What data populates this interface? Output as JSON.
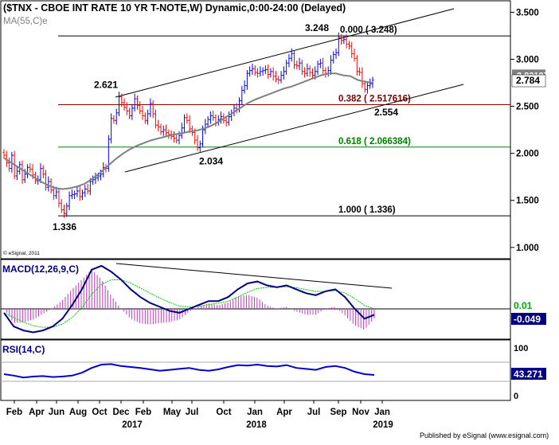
{
  "header": {
    "title": "($TNX - CBOE INT RATE 10 YR T-NOTE,W) Dynamic,0:00-24:00 (Delayed)",
    "ma_label": "MA(55,C)e",
    "watermark": "© eSignal, 2011",
    "footer": "Published by eSignal (www.esignal.com)"
  },
  "colors": {
    "up": "#0000ff",
    "down": "#ff0000",
    "ma": "#808080",
    "fib": "#800000",
    "fib618": "#008000",
    "macd": "#000080",
    "signal": "#00cc00",
    "hist": "#cc33cc",
    "rsi": "#0000cc",
    "price_box": "#000080"
  },
  "chart_data": [
    {
      "type": "candlestick",
      "name": "price",
      "y_ticks": [
        "3.500",
        "3.000",
        "2.500",
        "2.000",
        "1.500",
        "1.000"
      ],
      "y_tick_values": [
        3.5,
        3.0,
        2.5,
        2.0,
        1.5,
        1.0
      ],
      "ylim": [
        0.94,
        3.62
      ],
      "x_month_labels": [
        "Feb",
        "Apr",
        "Jun",
        "Aug",
        "Oct",
        "Dec",
        "Feb",
        "May",
        "Jul",
        "Oct",
        "Jan",
        "Apr",
        "Jul",
        "Sep",
        "Nov",
        "Jan"
      ],
      "x_year_labels": [
        "2017",
        "2018",
        "2019"
      ],
      "last_price": "2.784",
      "ma_value": "2.831873",
      "fib_levels": [
        {
          "label": "0.000 ( 3.248)",
          "value": 3.248
        },
        {
          "label": "0.382 ( 2.517616)",
          "value": 2.517616
        },
        {
          "label": "0.618 ( 2.066384)",
          "value": 2.066384
        },
        {
          "label": "1.000 ( 1.336)",
          "value": 1.336
        }
      ],
      "annotations": [
        "2.621",
        "2.034",
        "1.336",
        "3.248",
        "2.554"
      ],
      "annotation_values": [
        2.621,
        2.034,
        1.336,
        3.248,
        2.554
      ],
      "weekly_close": [
        1.98,
        1.9,
        1.84,
        1.98,
        1.76,
        1.81,
        1.88,
        1.72,
        1.78,
        1.85,
        1.83,
        1.77,
        1.71,
        1.72,
        1.84,
        1.78,
        1.64,
        1.7,
        1.61,
        1.55,
        1.59,
        1.47,
        1.4,
        1.36,
        1.44,
        1.55,
        1.56,
        1.57,
        1.6,
        1.54,
        1.58,
        1.62,
        1.6,
        1.7,
        1.72,
        1.74,
        1.76,
        1.78,
        1.85,
        1.84,
        2.15,
        2.37,
        2.35,
        2.43,
        2.6,
        2.54,
        2.49,
        2.45,
        2.4,
        2.48,
        2.58,
        2.51,
        2.45,
        2.4,
        2.35,
        2.42,
        2.53,
        2.42,
        2.3,
        2.28,
        2.23,
        2.25,
        2.22,
        2.2,
        2.18,
        2.16,
        2.14,
        2.19,
        2.27,
        2.38,
        2.35,
        2.26,
        2.22,
        2.14,
        2.06,
        2.1,
        2.25,
        2.31,
        2.36,
        2.4,
        2.38,
        2.33,
        2.36,
        2.39,
        2.35,
        2.33,
        2.39,
        2.43,
        2.48,
        2.47,
        2.56,
        2.67,
        2.72,
        2.85,
        2.88,
        2.9,
        2.86,
        2.85,
        2.87,
        2.88,
        2.89,
        2.84,
        2.87,
        2.82,
        2.79,
        2.78,
        2.83,
        2.87,
        2.96,
        3.01,
        3.06,
        2.94,
        2.93,
        2.96,
        2.87,
        2.85,
        2.9,
        2.86,
        2.83,
        2.87,
        2.95,
        2.96,
        2.88,
        2.85,
        2.88,
        2.99,
        3.05,
        3.07,
        3.23,
        3.2,
        3.21,
        3.16,
        3.14,
        3.06,
        3.01,
        2.87,
        2.86,
        2.74,
        2.68,
        2.72,
        2.74,
        2.78
      ],
      "ma55": [
        1.95,
        1.9,
        1.85,
        1.8,
        1.75,
        1.7,
        1.66,
        1.63,
        1.62,
        1.63,
        1.65,
        1.68,
        1.73,
        1.79,
        1.86,
        1.93,
        1.99,
        2.04,
        2.08,
        2.11,
        2.14,
        2.16,
        2.18,
        2.2,
        2.21,
        2.23,
        2.24,
        2.26,
        2.29,
        2.33,
        2.38,
        2.43,
        2.48,
        2.53,
        2.57,
        2.6,
        2.63,
        2.66,
        2.69,
        2.71,
        2.74,
        2.77,
        2.8,
        2.83,
        2.85,
        2.85,
        2.83,
        2.82,
        2.78,
        2.76,
        2.75
      ]
    },
    {
      "type": "line",
      "name": "MACD",
      "label": "MACD(12,26,9,C)",
      "value_labels": [
        "0.01",
        "-0.049"
      ],
      "macd_values": [
        -0.02,
        -0.09,
        -0.11,
        -0.12,
        -0.11,
        -0.09,
        -0.05,
        0.02,
        0.1,
        0.2,
        0.22,
        0.19,
        0.15,
        0.1,
        0.06,
        0.03,
        0.01,
        -0.01,
        -0.02,
        0.0,
        0.02,
        0.04,
        0.04,
        0.06,
        0.1,
        0.13,
        0.14,
        0.12,
        0.11,
        0.12,
        0.1,
        0.08,
        0.07,
        0.09,
        0.1,
        0.06,
        0.0,
        -0.05,
        -0.03
      ]
    },
    {
      "type": "line",
      "name": "RSI",
      "label": "RSI(14,C)",
      "y_ticks": [
        "100",
        "50",
        "0"
      ],
      "value_label": "43.271",
      "rsi_values": [
        45,
        42,
        38,
        40,
        41,
        39,
        40,
        42,
        48,
        58,
        65,
        66,
        62,
        60,
        58,
        55,
        52,
        54,
        56,
        58,
        54,
        52,
        55,
        60,
        64,
        63,
        65,
        62,
        61,
        64,
        58,
        56,
        54,
        60,
        62,
        58,
        50,
        45,
        43.271
      ]
    }
  ]
}
